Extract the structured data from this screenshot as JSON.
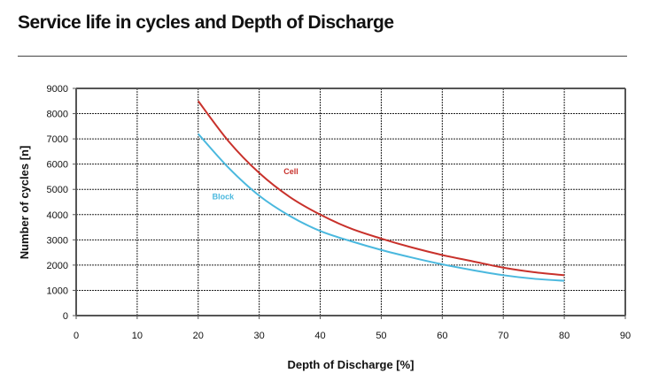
{
  "chart_data": {
    "type": "line",
    "title": "Service life in cycles and Depth of Discharge",
    "xlabel": "Depth of Discharge [%]",
    "ylabel": "Number of cycles  [n]",
    "xlim": [
      0,
      90
    ],
    "ylim": [
      0,
      9000
    ],
    "xticks": [
      0,
      10,
      20,
      30,
      40,
      50,
      60,
      70,
      80,
      90
    ],
    "yticks": [
      0,
      1000,
      2000,
      3000,
      4000,
      5000,
      6000,
      7000,
      8000,
      9000
    ],
    "grid": true,
    "legend": "inline labels",
    "series": [
      {
        "name": "Cell",
        "color": "#c8312b",
        "x": [
          20,
          25,
          30,
          35,
          40,
          45,
          50,
          55,
          60,
          65,
          70,
          75,
          80
        ],
        "y": [
          8500,
          6900,
          5650,
          4700,
          4000,
          3450,
          3050,
          2700,
          2400,
          2150,
          1900,
          1720,
          1600
        ]
      },
      {
        "name": "Block",
        "color": "#4ab8de",
        "x": [
          20,
          25,
          30,
          35,
          40,
          45,
          50,
          55,
          60,
          65,
          70,
          75,
          80
        ],
        "y": [
          7200,
          5850,
          4750,
          3950,
          3350,
          2950,
          2600,
          2300,
          2030,
          1800,
          1600,
          1460,
          1380
        ]
      }
    ],
    "annotations": [
      {
        "text": "Cell",
        "x": 34,
        "y": 5600,
        "color": "#c8312b"
      },
      {
        "text": "Block",
        "x": 22.3,
        "y": 4600,
        "color": "#4ab8de"
      }
    ]
  }
}
